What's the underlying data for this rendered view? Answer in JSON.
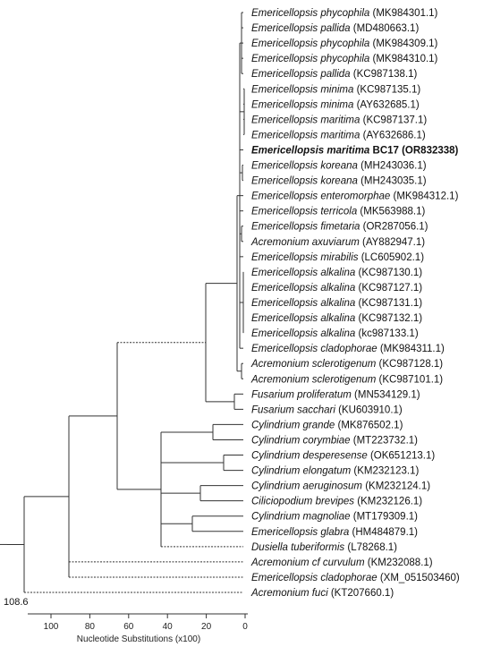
{
  "leaves": [
    {
      "genus": "Emericellopsis phycophila",
      "acc": "(MK984301.1)",
      "bold": false
    },
    {
      "genus": "Emericellopsis pallida",
      "acc": "(MD480663.1)",
      "bold": false
    },
    {
      "genus": "Emericellopsis phycophila",
      "acc": "(MK984309.1)",
      "bold": false
    },
    {
      "genus": "Emericellopsis phycophila",
      "acc": "(MK984310.1)",
      "bold": false
    },
    {
      "genus": "Emericellopsis pallida",
      "acc": "(KC987138.1)",
      "bold": false
    },
    {
      "genus": "Emericellopsis minima",
      "acc": "(KC987135.1)",
      "bold": false
    },
    {
      "genus": "Emericellopsis minima",
      "acc": "(AY632685.1)",
      "bold": false
    },
    {
      "genus": "Emericellopsis maritima",
      "acc": "(KC987137.1)",
      "bold": false
    },
    {
      "genus": "Emericellopsis maritima",
      "acc": "(AY632686.1)",
      "bold": false
    },
    {
      "genus": "Emericellopsis maritima",
      "acc": "BC17 (OR832338)",
      "bold": true
    },
    {
      "genus": "Emericellopsis koreana",
      "acc": "(MH243036.1)",
      "bold": false
    },
    {
      "genus": "Emericellopsis koreana",
      "acc": "(MH243035.1)",
      "bold": false
    },
    {
      "genus": "Emericellopsis enteromorphae",
      "acc": "(MK984312.1)",
      "bold": false
    },
    {
      "genus": "Emericellopsis terricola",
      "acc": "(MK563988.1)",
      "bold": false
    },
    {
      "genus": "Emericellopsis fimetaria",
      "acc": "(OR287056.1)",
      "bold": false
    },
    {
      "genus": "Acremonium axuviarum",
      "acc": "(AY882947.1)",
      "bold": false
    },
    {
      "genus": "Emericellopsis mirabilis",
      "acc": "(LC605902.1)",
      "bold": false
    },
    {
      "genus": "Emericellopsis alkalina",
      "acc": "(KC987130.1)",
      "bold": false
    },
    {
      "genus": "Emericellopsis alkalina",
      "acc": "(KC987127.1)",
      "bold": false
    },
    {
      "genus": "Emericellopsis alkalina",
      "acc": "(KC987131.1)",
      "bold": false
    },
    {
      "genus": "Emericellopsis alkalina",
      "acc": "(KC987132.1)",
      "bold": false
    },
    {
      "genus": "Emericellopsis alkalina",
      "acc": "(kc987133.1)",
      "bold": false
    },
    {
      "genus": "Emericellopsis cladophorae",
      "acc": "(MK984311.1)",
      "bold": false
    },
    {
      "genus": "Acremonium sclerotigenum",
      "acc": "(KC987128.1)",
      "bold": false
    },
    {
      "genus": "Acremonium sclerotigenum",
      "acc": "(KC987101.1)",
      "bold": false
    },
    {
      "genus": "Fusarium proliferatum",
      "acc": "(MN534129.1)",
      "bold": false
    },
    {
      "genus": "Fusarium sacchari",
      "acc": "(KU603910.1)",
      "bold": false
    },
    {
      "genus": "Cylindrium grande",
      "acc": "(MK876502.1)",
      "bold": false
    },
    {
      "genus": "Cylindrium corymbiae",
      "acc": "(MT223732.1)",
      "bold": false
    },
    {
      "genus": "Cylindrium desperesense",
      "acc": "(OK651213.1)",
      "bold": false
    },
    {
      "genus": "Cylindrium elongatum",
      "acc": "(KM232123.1)",
      "bold": false
    },
    {
      "genus": "Cylindrium aeruginosum",
      "acc": "(KM232124.1)",
      "bold": false
    },
    {
      "genus": "Ciliciopodium brevipes",
      "acc": "(KM232126.1)",
      "bold": false
    },
    {
      "genus": "Cylindrium magnoliae",
      "acc": "(MT179309.1)",
      "bold": false
    },
    {
      "genus": "Emericellopsis glabra",
      "acc": "(HM484879.1)",
      "bold": false
    },
    {
      "genus": "Dusiella tuberiformis",
      "acc": "(L78268.1)",
      "bold": false
    },
    {
      "genus": "Acremonium cf curvulum",
      "acc": "(KM232088.1)",
      "bold": false
    },
    {
      "genus": "Emericellopsis cladophorae",
      "acc": "(XM_051503460)",
      "bold": false
    },
    {
      "genus": "Acremonium fuci",
      "acc": "(KT207660.1)",
      "bold": false
    }
  ],
  "root_label": "108.6",
  "axis": {
    "ticks": [
      "100",
      "80",
      "60",
      "40",
      "20",
      "0"
    ],
    "label": "Nucleotide Substitutions (x100)"
  }
}
